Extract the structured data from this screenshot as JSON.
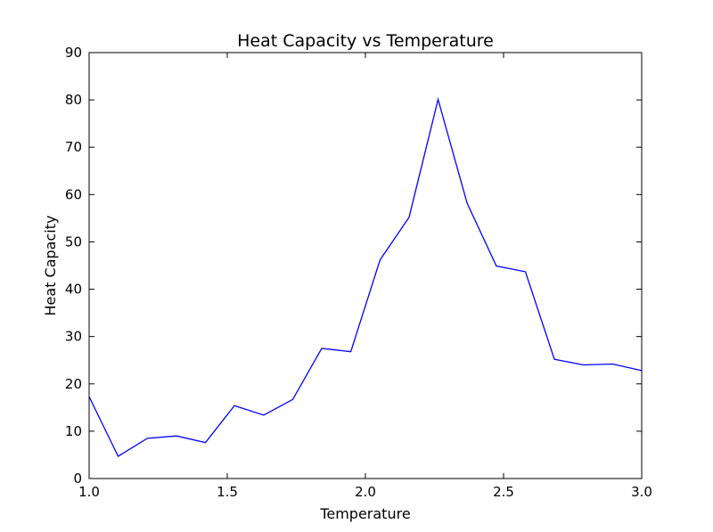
{
  "chart_data": {
    "type": "line",
    "title": "Heat Capacity vs Temperature",
    "xlabel": "Temperature",
    "ylabel": "Heat Capacity",
    "xlim": [
      1.0,
      3.0
    ],
    "ylim": [
      0,
      90
    ],
    "x_ticks": [
      1.0,
      1.5,
      2.0,
      2.5,
      3.0
    ],
    "x_tick_labels": [
      "1.0",
      "1.5",
      "2.0",
      "2.5",
      "3.0"
    ],
    "y_ticks": [
      0,
      10,
      20,
      30,
      40,
      50,
      60,
      70,
      80,
      90
    ],
    "y_tick_labels": [
      "0",
      "10",
      "20",
      "30",
      "40",
      "50",
      "60",
      "70",
      "80",
      "90"
    ],
    "grid": false,
    "series": [
      {
        "color": "#0000ff",
        "x": [
          1.0,
          1.105,
          1.211,
          1.316,
          1.421,
          1.526,
          1.632,
          1.737,
          1.842,
          1.947,
          2.053,
          2.158,
          2.263,
          2.368,
          2.474,
          2.579,
          2.684,
          2.789,
          2.895,
          3.0
        ],
        "y": [
          17.3,
          4.7,
          8.5,
          9.0,
          7.6,
          15.4,
          13.4,
          16.7,
          27.5,
          26.8,
          46.2,
          55.2,
          80.1,
          58.2,
          44.9,
          43.7,
          25.2,
          24.0,
          24.2,
          22.8
        ]
      }
    ]
  }
}
